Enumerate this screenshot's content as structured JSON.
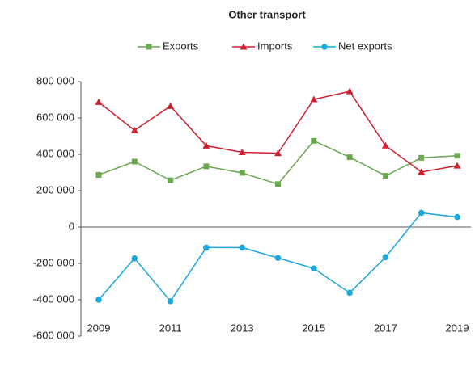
{
  "chart_data": {
    "type": "line",
    "title": "Other transport",
    "categories": [
      "2009",
      null,
      "2011",
      null,
      "2013",
      null,
      "2015",
      null,
      "2017",
      null,
      "2019"
    ],
    "series": [
      {
        "name": "Exports",
        "color": "#6aa84f",
        "marker": "square",
        "values": [
          287000,
          360000,
          257000,
          334000,
          298000,
          236000,
          474000,
          384000,
          282000,
          381000,
          392000
        ]
      },
      {
        "name": "Imports",
        "color": "#d0202f",
        "marker": "triangle",
        "values": [
          687000,
          532000,
          665000,
          447000,
          411000,
          406000,
          702000,
          746000,
          448000,
          303000,
          337000
        ]
      },
      {
        "name": "Net exports",
        "color": "#1aa7dc",
        "marker": "circle",
        "values": [
          -400000,
          -172000,
          -408000,
          -113000,
          -113000,
          -170000,
          -228000,
          -362000,
          -166000,
          78000,
          55000
        ]
      }
    ],
    "ylim": [
      -600000,
      800000
    ],
    "yticks": [
      {
        "value": -600000,
        "label": "-600 000"
      },
      {
        "value": -400000,
        "label": "-400 000"
      },
      {
        "value": -200000,
        "label": "-200 000"
      },
      0,
      {
        "value": 200000,
        "label": "200 000"
      },
      {
        "value": 400000,
        "label": "400 000"
      },
      {
        "value": 600000,
        "label": "600 000"
      },
      {
        "value": 800000,
        "label": "800 000"
      }
    ],
    "grid": false,
    "legend": "top"
  }
}
